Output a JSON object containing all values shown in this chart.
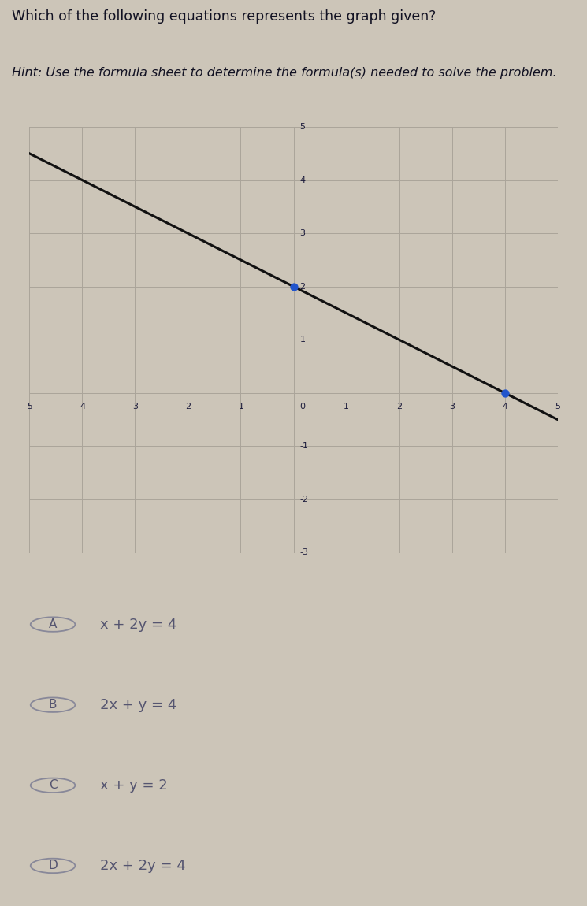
{
  "title": "Which of the following equations represents the graph given?",
  "hint": "Hint: Use the formula sheet to determine the formula(s) needed to solve the problem.",
  "bg_color": "#ccc5b8",
  "grid_color": "#aaa49a",
  "axis_color": "#1a1a3a",
  "line_color": "#111111",
  "dot_color": "#2255cc",
  "x_intercept": 4,
  "y_intercept": 2,
  "xlim": [
    -5,
    5
  ],
  "ylim": [
    -3,
    5
  ],
  "x_ticks": [
    -5,
    -4,
    -3,
    -2,
    -1,
    0,
    1,
    2,
    3,
    4,
    5
  ],
  "y_ticks": [
    -3,
    -2,
    -1,
    0,
    1,
    2,
    3,
    4,
    5
  ],
  "choices": [
    {
      "label": "A",
      "text": "x + 2y = 4"
    },
    {
      "label": "B",
      "text": "2x + y = 4"
    },
    {
      "label": "C",
      "text": "x + y = 2"
    },
    {
      "label": "D",
      "text": "2x + 2y = 4"
    }
  ],
  "choice_text_color": "#555570",
  "circle_color": "#888899",
  "title_color": "#111122",
  "hint_color": "#111122",
  "title_fontsize": 12.5,
  "hint_fontsize": 11.5,
  "choice_fontsize": 13,
  "tick_fontsize": 8
}
